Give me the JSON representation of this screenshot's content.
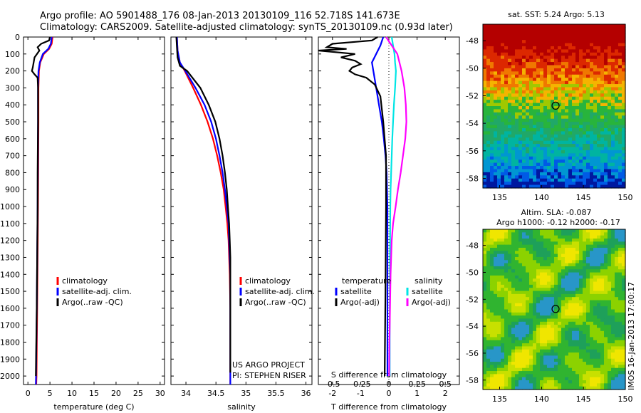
{
  "header": {
    "line1": "Argo profile: AO 5901488_176 08-Jan-2013 20130109_116 52.718S 141.673E",
    "line2": "Climatology: CARS2009. Satellite-adjusted climatology: synTS_20130109.nc (0.93d later)"
  },
  "colors": {
    "climatology": "#ff0000",
    "satellite": "#0000ff",
    "argo": "#000000",
    "sat_salinity": "#00e5e5",
    "argo_salinity": "#ff00ff"
  },
  "chart_data": [
    {
      "id": "temperature",
      "type": "line",
      "xlabel": "temperature (deg C)",
      "xlim": [
        -1,
        31
      ],
      "xticks": [
        0,
        5,
        10,
        15,
        20,
        25,
        30
      ],
      "ylim": [
        0,
        2050
      ],
      "yticks": [
        0,
        100,
        200,
        300,
        400,
        500,
        600,
        700,
        800,
        900,
        1000,
        1100,
        1200,
        1300,
        1400,
        1500,
        1600,
        1700,
        1800,
        1900,
        2000
      ],
      "legend": [
        "climatology",
        "satellite-adj. clim.",
        "Argo(..raw -QC)"
      ],
      "series": [
        {
          "name": "climatology",
          "color": "#ff0000",
          "points": [
            [
              5.6,
              0
            ],
            [
              5.4,
              40
            ],
            [
              4.8,
              70
            ],
            [
              3.6,
              100
            ],
            [
              2.8,
              150
            ],
            [
              2.5,
              200
            ],
            [
              2.4,
              300
            ],
            [
              2.4,
              500
            ],
            [
              2.35,
              800
            ],
            [
              2.3,
              1000
            ],
            [
              2.2,
              1300
            ],
            [
              2.1,
              1600
            ],
            [
              1.95,
              2000
            ],
            [
              1.9,
              2050
            ]
          ]
        },
        {
          "name": "satellite-adj. clim.",
          "color": "#0000ff",
          "points": [
            [
              5.4,
              0
            ],
            [
              5.2,
              40
            ],
            [
              4.6,
              70
            ],
            [
              3.4,
              100
            ],
            [
              2.7,
              150
            ],
            [
              2.4,
              200
            ],
            [
              2.3,
              300
            ],
            [
              2.3,
              500
            ],
            [
              2.25,
              800
            ],
            [
              2.2,
              1000
            ],
            [
              2.1,
              1300
            ],
            [
              2.0,
              1600
            ],
            [
              1.85,
              2000
            ],
            [
              1.8,
              2050
            ]
          ]
        },
        {
          "name": "Argo(..raw -QC)",
          "color": "#000000",
          "points": [
            [
              5.0,
              0
            ],
            [
              4.8,
              20
            ],
            [
              3.0,
              40
            ],
            [
              2.2,
              60
            ],
            [
              2.6,
              80
            ],
            [
              1.5,
              120
            ],
            [
              1.1,
              180
            ],
            [
              0.9,
              200
            ],
            [
              1.5,
              220
            ],
            [
              2.2,
              240
            ],
            [
              2.3,
              300
            ],
            [
              2.3,
              500
            ],
            [
              2.2,
              800
            ],
            [
              2.2,
              1000
            ],
            [
              2.1,
              1300
            ],
            [
              2.0,
              1600
            ],
            [
              1.8,
              2000
            ]
          ]
        }
      ]
    },
    {
      "id": "salinity",
      "type": "line",
      "xlabel": "salinity",
      "xlim": [
        33.75,
        36.1
      ],
      "xticks": [
        34,
        34.5,
        35,
        35.5,
        36
      ],
      "xticklabels": [
        "34",
        "34.5",
        "35",
        "35.5",
        "36"
      ],
      "ylim": [
        0,
        2050
      ],
      "legend": [
        "climatology",
        "satellite-adj. clim.",
        "Argo(..raw -QC)"
      ],
      "series": [
        {
          "name": "climatology",
          "color": "#ff0000",
          "points": [
            [
              33.85,
              0
            ],
            [
              33.86,
              80
            ],
            [
              33.9,
              150
            ],
            [
              33.98,
              200
            ],
            [
              34.12,
              300
            ],
            [
              34.25,
              400
            ],
            [
              34.36,
              500
            ],
            [
              34.45,
              600
            ],
            [
              34.52,
              700
            ],
            [
              34.58,
              800
            ],
            [
              34.63,
              900
            ],
            [
              34.66,
              1000
            ],
            [
              34.69,
              1100
            ],
            [
              34.71,
              1200
            ],
            [
              34.72,
              1300
            ],
            [
              34.73,
              1400
            ],
            [
              34.74,
              1600
            ],
            [
              34.74,
              1800
            ],
            [
              34.74,
              2050
            ]
          ]
        },
        {
          "name": "satellite-adj. clim.",
          "color": "#0000ff",
          "points": [
            [
              33.85,
              0
            ],
            [
              33.86,
              80
            ],
            [
              33.9,
              150
            ],
            [
              33.99,
              200
            ],
            [
              34.16,
              300
            ],
            [
              34.31,
              400
            ],
            [
              34.42,
              500
            ],
            [
              34.5,
              600
            ],
            [
              34.56,
              700
            ],
            [
              34.61,
              800
            ],
            [
              34.65,
              900
            ],
            [
              34.68,
              1000
            ],
            [
              34.71,
              1100
            ],
            [
              34.72,
              1200
            ],
            [
              34.73,
              1300
            ],
            [
              34.74,
              1400
            ],
            [
              34.74,
              1600
            ],
            [
              34.74,
              1800
            ],
            [
              34.74,
              2050
            ]
          ]
        },
        {
          "name": "Argo(..raw -QC)",
          "color": "#000000",
          "points": [
            [
              33.84,
              0
            ],
            [
              33.85,
              60
            ],
            [
              33.86,
              120
            ],
            [
              33.9,
              170
            ],
            [
              34.02,
              200
            ],
            [
              34.24,
              300
            ],
            [
              34.38,
              400
            ],
            [
              34.49,
              500
            ],
            [
              34.56,
              600
            ],
            [
              34.61,
              700
            ],
            [
              34.65,
              800
            ],
            [
              34.68,
              900
            ],
            [
              34.7,
              1000
            ],
            [
              34.72,
              1100
            ],
            [
              34.73,
              1200
            ],
            [
              34.74,
              1300
            ],
            [
              34.74,
              1500
            ],
            [
              34.74,
              1800
            ],
            [
              34.74,
              1980
            ]
          ]
        }
      ],
      "annotations": [
        "US ARGO PROJECT",
        "PI: STEPHEN RISER"
      ]
    },
    {
      "id": "difference",
      "type": "line",
      "xlabel": "T difference from climatology",
      "xlabel_top": "S difference from climatology",
      "xlim": [
        -2.5,
        2.5
      ],
      "xticks": [
        -2,
        -1,
        0,
        1,
        2
      ],
      "s_ticklabels": [
        "-0.5",
        "-0.25",
        "0",
        "0.25",
        "0.5"
      ],
      "ylim": [
        0,
        2050
      ],
      "legend_titles": [
        "temperature",
        "salinity"
      ],
      "legend": [
        "satellite",
        "Argo(-adj)",
        "satellite",
        "Argo(-adj)"
      ],
      "series": [
        {
          "name": "temperature satellite",
          "color": "#0000ff",
          "points": [
            [
              -0.2,
              0
            ],
            [
              -0.3,
              50
            ],
            [
              -0.45,
              100
            ],
            [
              -0.6,
              150
            ],
            [
              -0.55,
              200
            ],
            [
              -0.45,
              300
            ],
            [
              -0.35,
              400
            ],
            [
              -0.25,
              500
            ],
            [
              -0.18,
              600
            ],
            [
              -0.12,
              700
            ],
            [
              -0.08,
              800
            ],
            [
              -0.05,
              1000
            ],
            [
              -0.05,
              1500
            ],
            [
              -0.05,
              2000
            ]
          ]
        },
        {
          "name": "temperature Argo(-adj)",
          "color": "#000000",
          "points": [
            [
              -0.4,
              0
            ],
            [
              -0.6,
              20
            ],
            [
              -2.0,
              40
            ],
            [
              -2.2,
              60
            ],
            [
              -1.5,
              70
            ],
            [
              -2.5,
              80
            ],
            [
              -1.2,
              100
            ],
            [
              -1.7,
              120
            ],
            [
              -1.2,
              140
            ],
            [
              -1.0,
              160
            ],
            [
              -1.3,
              180
            ],
            [
              -1.4,
              200
            ],
            [
              -1.2,
              220
            ],
            [
              -0.8,
              240
            ],
            [
              -0.5,
              280
            ],
            [
              -0.3,
              350
            ],
            [
              -0.2,
              500
            ],
            [
              -0.1,
              700
            ],
            [
              -0.1,
              1000
            ],
            [
              -0.12,
              1500
            ],
            [
              -0.15,
              2000
            ]
          ]
        },
        {
          "name": "salinity satellite",
          "color": "#00e5e5",
          "points": [
            [
              0.1,
              0
            ],
            [
              0.15,
              50
            ],
            [
              0.2,
              100
            ],
            [
              0.22,
              150
            ],
            [
              0.25,
              200
            ],
            [
              0.22,
              300
            ],
            [
              0.18,
              400
            ],
            [
              0.15,
              500
            ],
            [
              0.12,
              600
            ],
            [
              0.1,
              700
            ],
            [
              0.08,
              800
            ],
            [
              0.06,
              900
            ],
            [
              0.05,
              1000
            ],
            [
              0.04,
              1300
            ],
            [
              0.03,
              1600
            ],
            [
              0.03,
              2000
            ]
          ]
        },
        {
          "name": "salinity Argo(-adj)",
          "color": "#ff00ff",
          "points": [
            [
              -0.1,
              0
            ],
            [
              0.1,
              50
            ],
            [
              0.3,
              100
            ],
            [
              0.45,
              200
            ],
            [
              0.55,
              300
            ],
            [
              0.6,
              400
            ],
            [
              0.62,
              500
            ],
            [
              0.58,
              600
            ],
            [
              0.5,
              700
            ],
            [
              0.42,
              800
            ],
            [
              0.32,
              900
            ],
            [
              0.24,
              1000
            ],
            [
              0.15,
              1100
            ],
            [
              0.1,
              1200
            ],
            [
              0.06,
              1400
            ],
            [
              0.04,
              1600
            ],
            [
              0.02,
              1800
            ],
            [
              0.01,
              2000
            ]
          ]
        }
      ]
    },
    {
      "id": "sst-map",
      "type": "heatmap",
      "title": "sat. SST: 5.24 Argo: 5.13",
      "xticks": [
        135,
        140,
        145,
        150
      ],
      "yticks": [
        -48,
        -50,
        -52,
        -54,
        -56,
        -58
      ],
      "xlim": [
        133,
        150
      ],
      "ylim": [
        -58.7,
        -46.8
      ],
      "marker": {
        "lon": 141.673,
        "lat": -52.718
      }
    },
    {
      "id": "sla-map",
      "type": "heatmap",
      "title": "Altim. SLA: -0.087",
      "subtitle": "Argo h1000: -0.12 h2000: -0.17",
      "xticks": [
        135,
        140,
        145,
        150
      ],
      "yticks": [
        -48,
        -50,
        -52,
        -54,
        -56,
        -58
      ],
      "xlim": [
        133,
        150
      ],
      "ylim": [
        -58.7,
        -46.8
      ],
      "marker": {
        "lon": 141.673,
        "lat": -52.718
      },
      "sidebar_text": "IMOS 16-Jan-2013 17:00:17"
    }
  ]
}
